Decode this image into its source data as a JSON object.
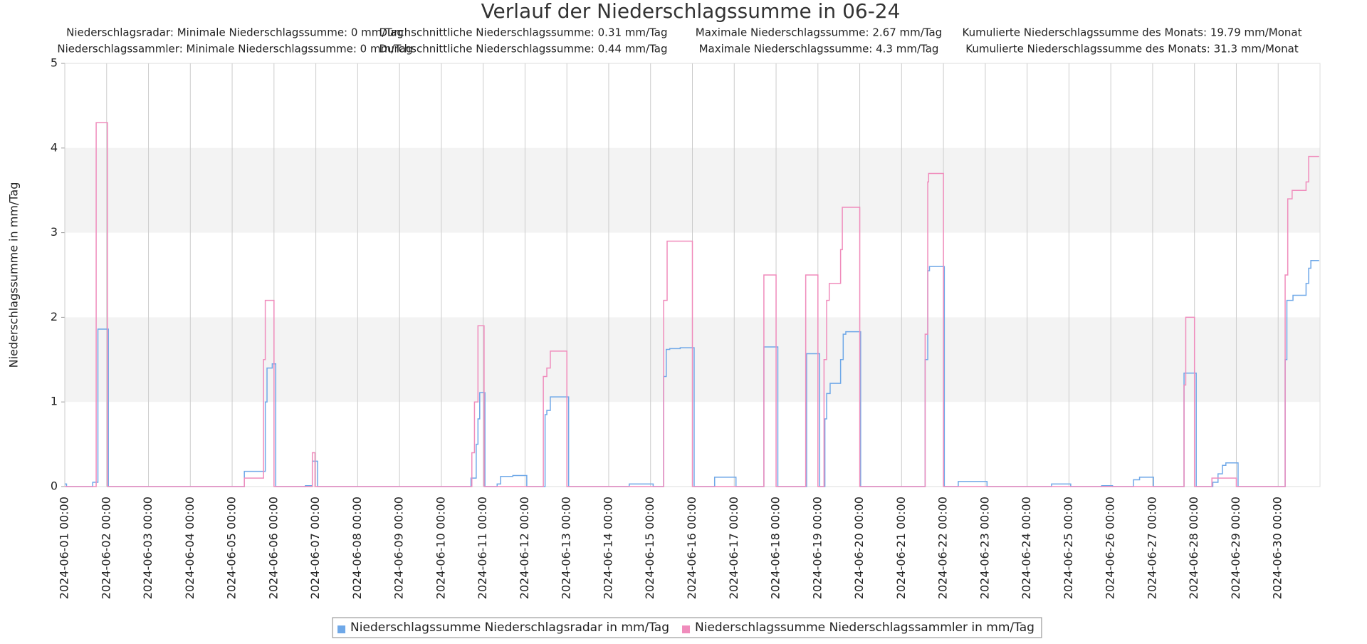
{
  "chart_data": {
    "type": "line",
    "step": true,
    "title": "Verlauf der Niederschlagssumme in 06-24",
    "stats": [
      [
        "Niederschlagsradar: Minimale Niederschlagssumme: 0 mm/Tag",
        "Durchschnittliche Niederschlagssumme: 0.31 mm/Tag",
        "Maximale Niederschlagssumme: 2.67 mm/Tag",
        "Kumulierte Niederschlagssumme des Monats: 19.79 mm/Monat"
      ],
      [
        "Niederschlagssammler: Minimale Niederschlagssumme: 0 mm/Tag",
        "Durchschnittliche Niederschlagssumme: 0.44 mm/Tag",
        "Maximale Niederschlagssumme: 4.3 mm/Tag",
        "Kumulierte Niederschlagssumme des Monats: 31.3 mm/Monat"
      ]
    ],
    "ylabel": "Niederschlagssumme in mm/Tag",
    "xlim": [
      "2024-06-01 00:00",
      "2024-07-01 00:00"
    ],
    "xticks": [
      "2024-06-01 00:00",
      "2024-06-02 00:00",
      "2024-06-03 00:00",
      "2024-06-04 00:00",
      "2024-06-05 00:00",
      "2024-06-06 00:00",
      "2024-06-07 00:00",
      "2024-06-08 00:00",
      "2024-06-09 00:00",
      "2024-06-10 00:00",
      "2024-06-11 00:00",
      "2024-06-12 00:00",
      "2024-06-13 00:00",
      "2024-06-14 00:00",
      "2024-06-15 00:00",
      "2024-06-16 00:00",
      "2024-06-17 00:00",
      "2024-06-18 00:00",
      "2024-06-19 00:00",
      "2024-06-20 00:00",
      "2024-06-21 00:00",
      "2024-06-22 00:00",
      "2024-06-23 00:00",
      "2024-06-24 00:00",
      "2024-06-25 00:00",
      "2024-06-26 00:00",
      "2024-06-27 00:00",
      "2024-06-28 00:00",
      "2024-06-29 00:00",
      "2024-06-30 00:00"
    ],
    "ylim": [
      0,
      5
    ],
    "yticks": [
      0,
      1,
      2,
      3,
      4,
      5
    ],
    "bands": true,
    "xgrid": true,
    "legend": "bottom",
    "series": [
      {
        "name": "Niederschlagssumme Niederschlagsradar in mm/Tag",
        "color": "#6fa8e8",
        "x": [
          "2024-06-01 00:00",
          "2024-06-01 01:00",
          "2024-06-01 16:00",
          "2024-06-01 19:00",
          "2024-06-02 01:00",
          "2024-06-05 07:00",
          "2024-06-05 19:00",
          "2024-06-05 20:00",
          "2024-06-05 23:00",
          "2024-06-06 01:00",
          "2024-06-06 18:00",
          "2024-06-06 22:00",
          "2024-06-07 01:00",
          "2024-06-10 17:00",
          "2024-06-10 20:00",
          "2024-06-10 21:00",
          "2024-06-10 22:00",
          "2024-06-11 01:00",
          "2024-06-11 08:00",
          "2024-06-11 10:00",
          "2024-06-11 17:00",
          "2024-06-12 01:00",
          "2024-06-12 11:30",
          "2024-06-12 12:30",
          "2024-06-12 14:30",
          "2024-06-13 01:00",
          "2024-06-14 11:45",
          "2024-06-15 01:30",
          "2024-06-15 07:30",
          "2024-06-15 09:00",
          "2024-06-15 11:00",
          "2024-06-15 17:00",
          "2024-06-16 01:00",
          "2024-06-16 12:45",
          "2024-06-17 01:00",
          "2024-06-17 17:00",
          "2024-06-18 01:00",
          "2024-06-18 17:30",
          "2024-06-19 01:00",
          "2024-06-19 04:00",
          "2024-06-19 05:00",
          "2024-06-19 07:00",
          "2024-06-19 13:00",
          "2024-06-19 14:30",
          "2024-06-19 16:00",
          "2024-06-20 00:30",
          "2024-06-21 13:30",
          "2024-06-21 15:00",
          "2024-06-21 16:00",
          "2024-06-22 00:30",
          "2024-06-22 08:30",
          "2024-06-23 01:00",
          "2024-06-24 14:00",
          "2024-06-25 01:00",
          "2024-06-25 18:45",
          "2024-06-26 01:00",
          "2024-06-26 13:00",
          "2024-06-26 16:30",
          "2024-06-27 00:30",
          "2024-06-27 18:00",
          "2024-06-28 01:00",
          "2024-06-28 10:30",
          "2024-06-28 13:30",
          "2024-06-28 16:00",
          "2024-06-28 18:00",
          "2024-06-29 01:00",
          "2024-06-30 04:00",
          "2024-06-30 05:00",
          "2024-06-30 08:30",
          "2024-06-30 16:00",
          "2024-06-30 17:30",
          "2024-06-30 18:45",
          "2024-06-30 23:30"
        ],
        "values": [
          0.03,
          0,
          0.05,
          1.86,
          0,
          0.18,
          1.0,
          1.4,
          1.45,
          0,
          0.01,
          0.3,
          0,
          0.1,
          0.5,
          0.8,
          1.11,
          0,
          0.03,
          0.12,
          0.13,
          0,
          0.85,
          0.9,
          1.06,
          0,
          0.03,
          0,
          1.3,
          1.62,
          1.63,
          1.64,
          0,
          0.11,
          0,
          1.65,
          0,
          1.57,
          0,
          0.8,
          1.1,
          1.22,
          1.5,
          1.8,
          1.83,
          0,
          1.5,
          2.55,
          2.6,
          0,
          0.06,
          0,
          0.03,
          0,
          0.01,
          0,
          0.08,
          0.11,
          0,
          1.34,
          0,
          0.05,
          0.15,
          0.25,
          0.28,
          0,
          1.5,
          2.2,
          2.26,
          2.4,
          2.58,
          2.67,
          2.67
        ]
      },
      {
        "name": "Niederschlagssumme Niederschlagssammler in mm/Tag",
        "color": "#f08cbc",
        "x": [
          "2024-06-01 00:00",
          "2024-06-01 18:00",
          "2024-06-02 00:30",
          "2024-06-05 07:00",
          "2024-06-05 18:00",
          "2024-06-05 19:00",
          "2024-06-06 00:00",
          "2024-06-06 22:00",
          "2024-06-06 23:30",
          "2024-06-10 17:30",
          "2024-06-10 19:00",
          "2024-06-10 21:00",
          "2024-06-11 00:30",
          "2024-06-12 10:30",
          "2024-06-12 12:30",
          "2024-06-12 14:30",
          "2024-06-13 00:00",
          "2024-06-15 07:30",
          "2024-06-15 09:30",
          "2024-06-16 00:00",
          "2024-06-17 17:00",
          "2024-06-18 00:00",
          "2024-06-18 17:00",
          "2024-06-19 00:00",
          "2024-06-19 03:30",
          "2024-06-19 05:00",
          "2024-06-19 06:30",
          "2024-06-19 13:00",
          "2024-06-19 14:00",
          "2024-06-20 00:00",
          "2024-06-21 13:30",
          "2024-06-21 15:00",
          "2024-06-21 15:30",
          "2024-06-22 00:00",
          "2024-06-27 18:00",
          "2024-06-27 19:00",
          "2024-06-28 00:00",
          "2024-06-28 10:00",
          "2024-06-29 00:00",
          "2024-06-30 04:00",
          "2024-06-30 05:30",
          "2024-06-30 08:00",
          "2024-06-30 16:00",
          "2024-06-30 17:30",
          "2024-06-30 23:30"
        ],
        "values": [
          0,
          4.3,
          0,
          0.1,
          1.5,
          2.2,
          0,
          0.4,
          0,
          0.4,
          1.0,
          1.9,
          0,
          1.3,
          1.4,
          1.6,
          0,
          2.2,
          2.9,
          0,
          2.5,
          0,
          2.5,
          0,
          1.5,
          2.2,
          2.4,
          2.8,
          3.3,
          0,
          1.8,
          3.6,
          3.7,
          0,
          1.2,
          2.0,
          0,
          0.1,
          0,
          2.5,
          3.4,
          3.5,
          3.6,
          3.9,
          3.9
        ]
      }
    ]
  }
}
